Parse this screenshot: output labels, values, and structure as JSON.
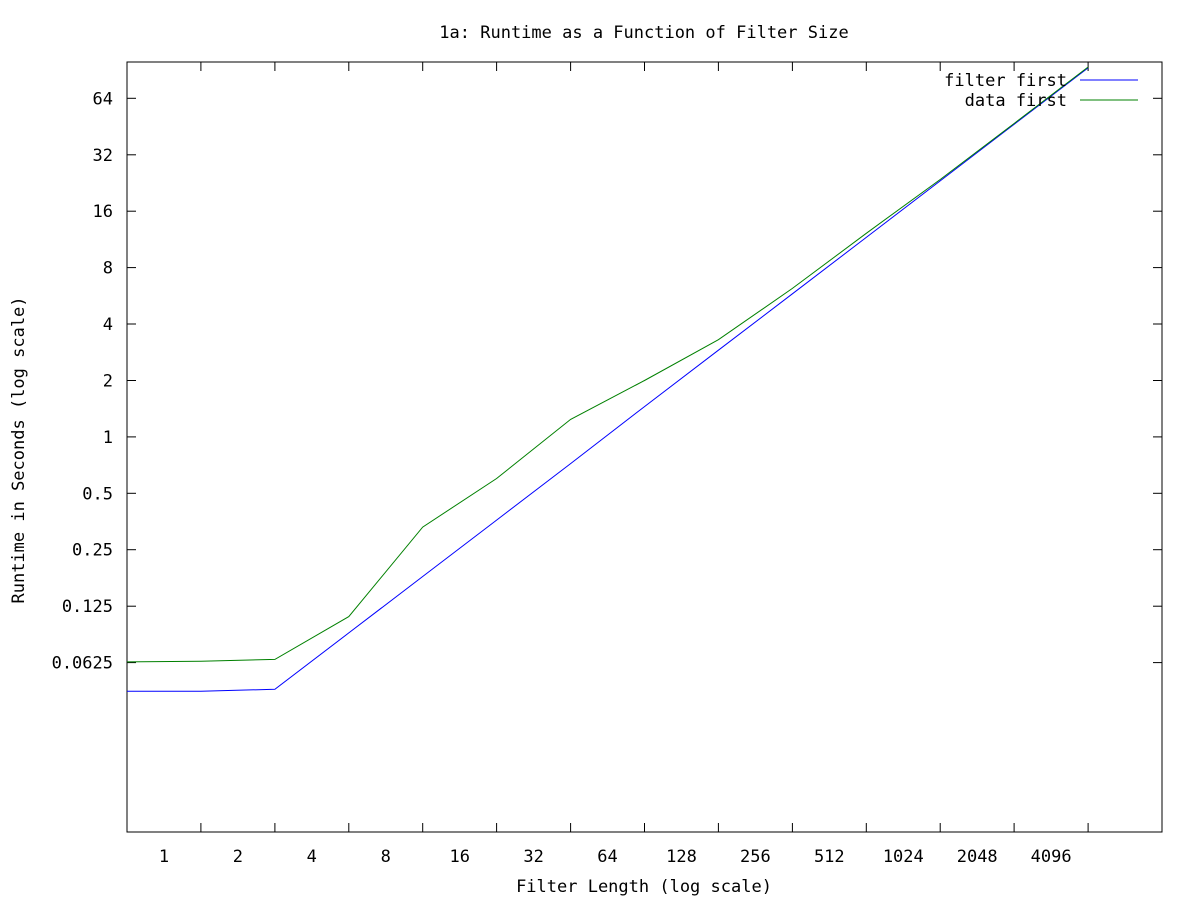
{
  "chart_data": {
    "type": "line",
    "title": "1a: Runtime as a Function of Filter Size",
    "xlabel": "Filter Length (log scale)",
    "ylabel": "Runtime in Seconds (log scale)",
    "x_scale": "log2",
    "y_scale": "log2",
    "xlim": [
      0.5,
      8192
    ],
    "ylim": [
      0.0078,
      100
    ],
    "x_ticks": [
      {
        "label": "1",
        "value": 1
      },
      {
        "label": "2",
        "value": 2
      },
      {
        "label": "4",
        "value": 4
      },
      {
        "label": "8",
        "value": 8
      },
      {
        "label": "16",
        "value": 16
      },
      {
        "label": "32",
        "value": 32
      },
      {
        "label": "64",
        "value": 64
      },
      {
        "label": "128",
        "value": 128
      },
      {
        "label": "256",
        "value": 256
      },
      {
        "label": "512",
        "value": 512
      },
      {
        "label": "1024",
        "value": 1024
      },
      {
        "label": "2048",
        "value": 2048
      },
      {
        "label": "4096",
        "value": 4096
      }
    ],
    "y_ticks": [
      {
        "label": "0.0625",
        "value": 0.0625
      },
      {
        "label": "0.125",
        "value": 0.125
      },
      {
        "label": "0.25",
        "value": 0.25
      },
      {
        "label": "0.5",
        "value": 0.5
      },
      {
        "label": "1",
        "value": 1
      },
      {
        "label": "2",
        "value": 2
      },
      {
        "label": "4",
        "value": 4
      },
      {
        "label": "8",
        "value": 8
      },
      {
        "label": "16",
        "value": 16
      },
      {
        "label": "32",
        "value": 32
      },
      {
        "label": "64",
        "value": 64
      }
    ],
    "grid": false,
    "legend_position": "top-right",
    "series": [
      {
        "name": "filter first",
        "color": "#0000ff",
        "x": [
          0.5,
          1,
          2,
          4,
          8,
          16,
          32,
          64,
          128,
          256,
          512,
          1024,
          2048,
          4096
        ],
        "y": [
          0.044,
          0.044,
          0.045,
          0.09,
          0.18,
          0.36,
          0.72,
          1.45,
          2.9,
          5.8,
          11.6,
          23.2,
          46.5,
          93
        ]
      },
      {
        "name": "data first",
        "color": "#008000",
        "x": [
          0.5,
          1,
          2,
          4,
          8,
          16,
          32,
          64,
          128,
          256,
          512,
          1024,
          2048,
          4096
        ],
        "y": [
          0.063,
          0.0635,
          0.065,
          0.11,
          0.33,
          0.6,
          1.24,
          2.0,
          3.3,
          6.2,
          12.2,
          23.6,
          47,
          94
        ]
      }
    ]
  }
}
